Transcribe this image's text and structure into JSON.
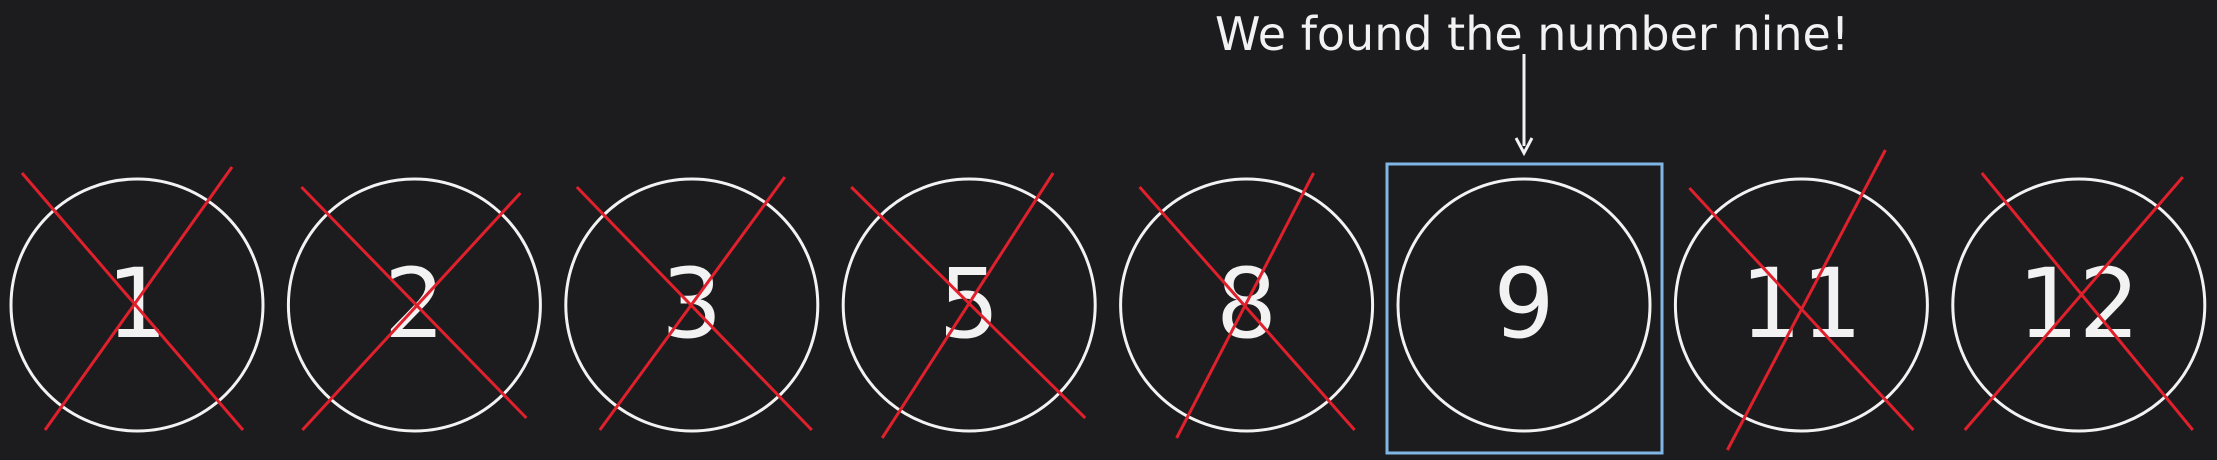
{
  "caption": "We found the number nine!",
  "items": [
    {
      "label": "1",
      "crossed": true
    },
    {
      "label": "2",
      "crossed": true
    },
    {
      "label": "3",
      "crossed": true
    },
    {
      "label": "5",
      "crossed": true
    },
    {
      "label": "8",
      "crossed": true
    },
    {
      "label": "9",
      "crossed": false,
      "highlighted": true
    },
    {
      "label": "11",
      "crossed": true
    },
    {
      "label": "12",
      "crossed": true
    }
  ],
  "colors": {
    "background": "#1c1c1e",
    "circle": "#f2f2f2",
    "text": "#f2f2f2",
    "cross": "#e0202c",
    "highlight": "#7fb6e6",
    "arrow": "#f2f2f2"
  }
}
